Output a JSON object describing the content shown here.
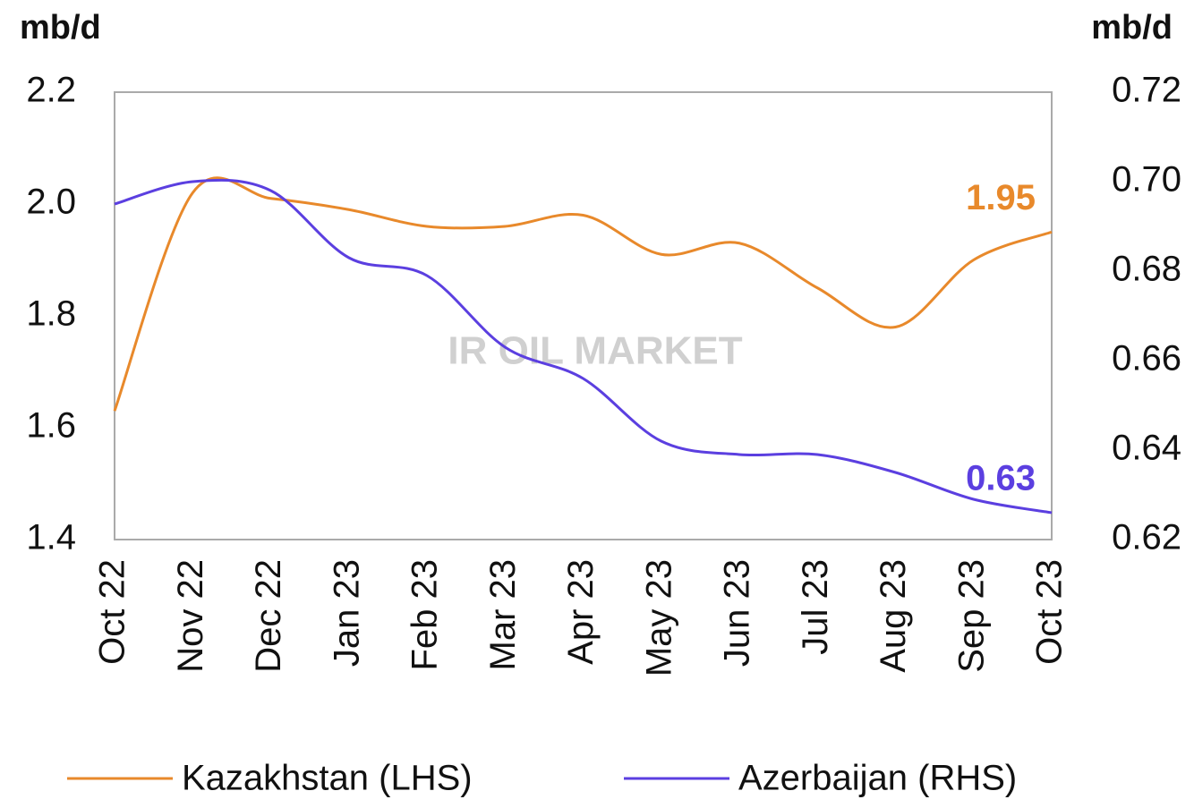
{
  "chart_data": {
    "type": "line",
    "y_label": "mb/d",
    "y2_label": "mb/d",
    "watermark": "IR OIL MARKET",
    "categories": [
      "Oct 22",
      "Nov 22",
      "Dec 22",
      "Jan 23",
      "Feb 23",
      "Mar 23",
      "Apr 23",
      "May 23",
      "Jun 23",
      "Jul 23",
      "Aug 23",
      "Sep 23",
      "Oct 23"
    ],
    "series": [
      {
        "name": "Kazakhstan (LHS)",
        "color": "#e8892b",
        "axis": "y",
        "values": [
          1.63,
          2.02,
          2.01,
          1.99,
          1.96,
          1.96,
          1.98,
          1.91,
          1.93,
          1.85,
          1.78,
          1.9,
          1.95
        ]
      },
      {
        "name": "Azerbaijan (RHS)",
        "color": "#5b3fe0",
        "axis": "y2",
        "values": [
          0.695,
          0.7,
          0.698,
          0.683,
          0.679,
          0.663,
          0.656,
          0.642,
          0.639,
          0.639,
          0.635,
          0.629,
          0.626
        ]
      }
    ],
    "annotations": [
      {
        "text": "1.95",
        "series": 0
      },
      {
        "text": "0.63",
        "series": 1
      }
    ],
    "ylim": [
      1.4,
      2.2
    ],
    "yticks": [
      1.4,
      1.6,
      1.8,
      {
        "value": 2.0,
        "label": "2.0"
      },
      2.2
    ],
    "y2lim": [
      0.62,
      0.72
    ],
    "y2ticks": [
      0.62,
      0.64,
      0.66,
      0.68,
      {
        "value": 0.7,
        "label": "0.70"
      },
      0.72
    ],
    "grid": false,
    "legend": "bottom"
  }
}
